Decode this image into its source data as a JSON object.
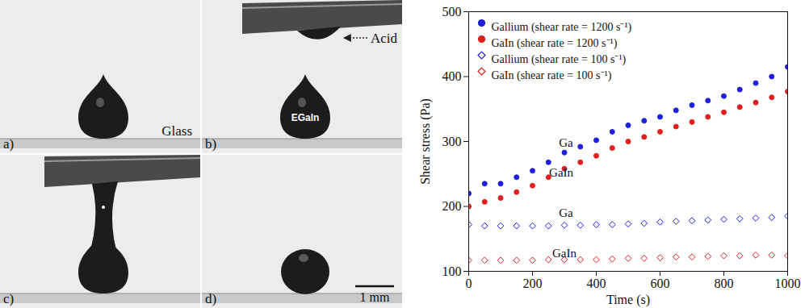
{
  "photos": {
    "panel_labels": [
      "a)",
      "b)",
      "c)",
      "d)"
    ],
    "surface_label": "Glass",
    "acid_label": "Acid",
    "droplet_label": "EGaIn",
    "scale_bar": "1 mm"
  },
  "chart_data": {
    "type": "scatter",
    "x_label": "Time (s)",
    "y_label": "Shear stress (Pa)",
    "x": [
      0,
      50,
      100,
      150,
      200,
      250,
      300,
      350,
      400,
      450,
      500,
      550,
      600,
      650,
      700,
      750,
      800,
      850,
      900,
      950,
      1000
    ],
    "series": [
      {
        "name": "Gallium (shear rate = 1200 s⁻¹)",
        "color": "#1f1fe0",
        "marker": "circle",
        "values": [
          220,
          235,
          235,
          245,
          255,
          268,
          283,
          292,
          302,
          315,
          325,
          332,
          338,
          348,
          356,
          363,
          370,
          380,
          390,
          400,
          415
        ]
      },
      {
        "name": "GaIn (shear rate = 1200 s⁻¹)",
        "color": "#e01f1f",
        "marker": "circle",
        "values": [
          200,
          207,
          213,
          222,
          232,
          245,
          258,
          268,
          278,
          290,
          300,
          307,
          315,
          323,
          330,
          338,
          345,
          353,
          360,
          368,
          377
        ]
      },
      {
        "name": "Gallium (shear rate = 100 s⁻¹)",
        "color": "#1f1fe0",
        "marker": "open_diamond",
        "values": [
          172,
          170,
          170,
          170,
          170,
          170,
          171,
          171,
          172,
          172,
          173,
          174,
          176,
          177,
          178,
          179,
          180,
          181,
          182,
          183,
          185
        ]
      },
      {
        "name": "GaIn (shear rate = 100 s⁻¹)",
        "color": "#e01f1f",
        "marker": "open_diamond",
        "values": [
          117,
          117,
          117,
          117,
          117,
          118,
          118,
          118,
          118,
          119,
          120,
          120,
          121,
          122,
          122,
          123,
          124,
          124,
          125,
          125,
          124
        ]
      }
    ],
    "annotations": [
      {
        "text": "Ga",
        "x": 305,
        "y": 298
      },
      {
        "text": "GaIn",
        "x": 290,
        "y": 252
      },
      {
        "text": "Ga",
        "x": 305,
        "y": 190
      },
      {
        "text": "GaIn",
        "x": 300,
        "y": 128
      }
    ],
    "xlim": [
      0,
      1000
    ],
    "xticks": [
      0,
      200,
      400,
      600,
      800,
      1000
    ],
    "ylim": [
      100,
      500
    ],
    "yticks": [
      100,
      200,
      300,
      400,
      500
    ],
    "grid": false,
    "legend": "top-left"
  }
}
